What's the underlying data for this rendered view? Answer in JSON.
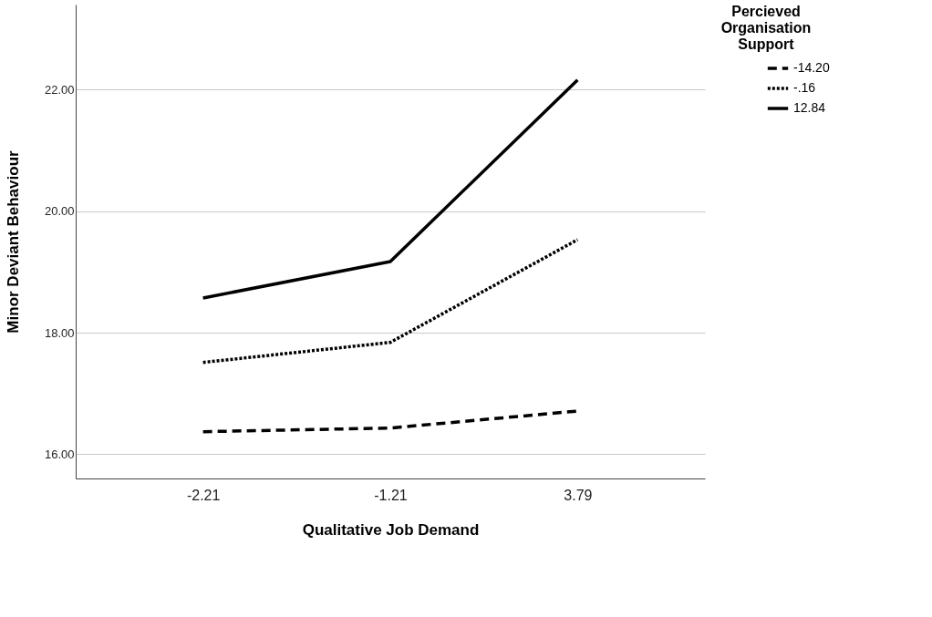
{
  "chart_data": {
    "type": "line",
    "xlabel": "Qualitative Job Demand",
    "ylabel": "Minor Deviant Behaviour",
    "legend_title": "Percieved Organisation Support",
    "categories": [
      "-2.21",
      "-1.21",
      "3.79"
    ],
    "series": [
      {
        "name": "-14.20",
        "color": "#000000",
        "line_style": "dashed",
        "values": [
          16.37,
          16.43,
          16.71
        ]
      },
      {
        "name": "-.16",
        "color": "#000000",
        "line_style": "dotted",
        "values": [
          17.51,
          17.84,
          19.53
        ]
      },
      {
        "name": "12.84",
        "color": "#000000",
        "line_style": "solid",
        "values": [
          18.57,
          19.17,
          22.16
        ]
      }
    ],
    "ylim": [
      15.6,
      23.4
    ],
    "yticks": [
      {
        "value": 16,
        "label": "16.00"
      },
      {
        "value": 18,
        "label": "18.00"
      },
      {
        "value": 20,
        "label": "20.00"
      },
      {
        "value": 22,
        "label": "22.00"
      }
    ],
    "grid": "y",
    "legend": "top right",
    "marker": "none"
  }
}
